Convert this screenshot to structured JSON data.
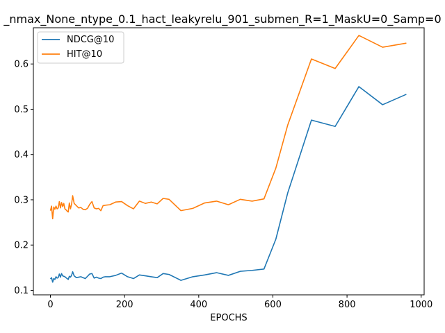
{
  "chart_data": {
    "type": "line",
    "title": "_nmax_None_ntype_0.1_hact_leakyrelu_901_submen_R=1_MaskU=0_Samp=0",
    "xlabel": "EPOCHS",
    "ylabel": "",
    "xlim": [
      -46,
      1008
    ],
    "ylim": [
      0.09,
      0.68
    ],
    "xticks": [
      0,
      200,
      400,
      600,
      800,
      1000
    ],
    "yticks": [
      0.1,
      0.2,
      0.3,
      0.4,
      0.5,
      0.6
    ],
    "grid": false,
    "legend_position": "upper-left",
    "series": [
      {
        "name": "NDCG@10",
        "color": "#1f77b4",
        "x": [
          0,
          3,
          6,
          9,
          12,
          15,
          18,
          21,
          24,
          27,
          30,
          33,
          36,
          39,
          42,
          45,
          48,
          51,
          54,
          57,
          60,
          64,
          70,
          76,
          82,
          88,
          94,
          100,
          106,
          112,
          118,
          124,
          130,
          136,
          142,
          148,
          160,
          176,
          192,
          208,
          224,
          240,
          256,
          272,
          288,
          304,
          320,
          352,
          384,
          416,
          448,
          480,
          512,
          544,
          576,
          608,
          640,
          704,
          768,
          832,
          896,
          960
        ],
        "y": [
          0.125,
          0.128,
          0.118,
          0.126,
          0.124,
          0.13,
          0.127,
          0.128,
          0.136,
          0.129,
          0.137,
          0.132,
          0.131,
          0.13,
          0.128,
          0.126,
          0.124,
          0.131,
          0.129,
          0.133,
          0.141,
          0.132,
          0.128,
          0.129,
          0.13,
          0.128,
          0.126,
          0.131,
          0.136,
          0.137,
          0.127,
          0.129,
          0.127,
          0.126,
          0.129,
          0.13,
          0.13,
          0.133,
          0.138,
          0.13,
          0.126,
          0.134,
          0.132,
          0.13,
          0.128,
          0.137,
          0.135,
          0.122,
          0.13,
          0.134,
          0.139,
          0.133,
          0.142,
          0.144,
          0.147,
          0.213,
          0.315,
          0.476,
          0.462,
          0.55,
          0.51,
          0.533
        ]
      },
      {
        "name": "HIT@10",
        "color": "#ff7f0e",
        "x": [
          0,
          3,
          6,
          9,
          12,
          15,
          18,
          21,
          24,
          27,
          30,
          33,
          36,
          39,
          42,
          45,
          48,
          51,
          54,
          57,
          60,
          64,
          70,
          76,
          82,
          88,
          94,
          100,
          106,
          112,
          118,
          124,
          130,
          136,
          142,
          148,
          160,
          176,
          192,
          208,
          224,
          240,
          256,
          272,
          288,
          304,
          320,
          352,
          384,
          416,
          448,
          480,
          512,
          544,
          576,
          608,
          640,
          704,
          768,
          832,
          896,
          960
        ],
        "y": [
          0.276,
          0.286,
          0.258,
          0.284,
          0.279,
          0.286,
          0.28,
          0.282,
          0.296,
          0.282,
          0.294,
          0.285,
          0.292,
          0.28,
          0.278,
          0.275,
          0.273,
          0.293,
          0.28,
          0.29,
          0.309,
          0.292,
          0.287,
          0.282,
          0.283,
          0.279,
          0.278,
          0.281,
          0.29,
          0.296,
          0.282,
          0.28,
          0.281,
          0.276,
          0.287,
          0.288,
          0.289,
          0.295,
          0.296,
          0.287,
          0.28,
          0.297,
          0.292,
          0.295,
          0.291,
          0.303,
          0.301,
          0.276,
          0.281,
          0.293,
          0.297,
          0.289,
          0.301,
          0.297,
          0.302,
          0.37,
          0.465,
          0.611,
          0.59,
          0.663,
          0.637,
          0.646
        ]
      }
    ]
  }
}
